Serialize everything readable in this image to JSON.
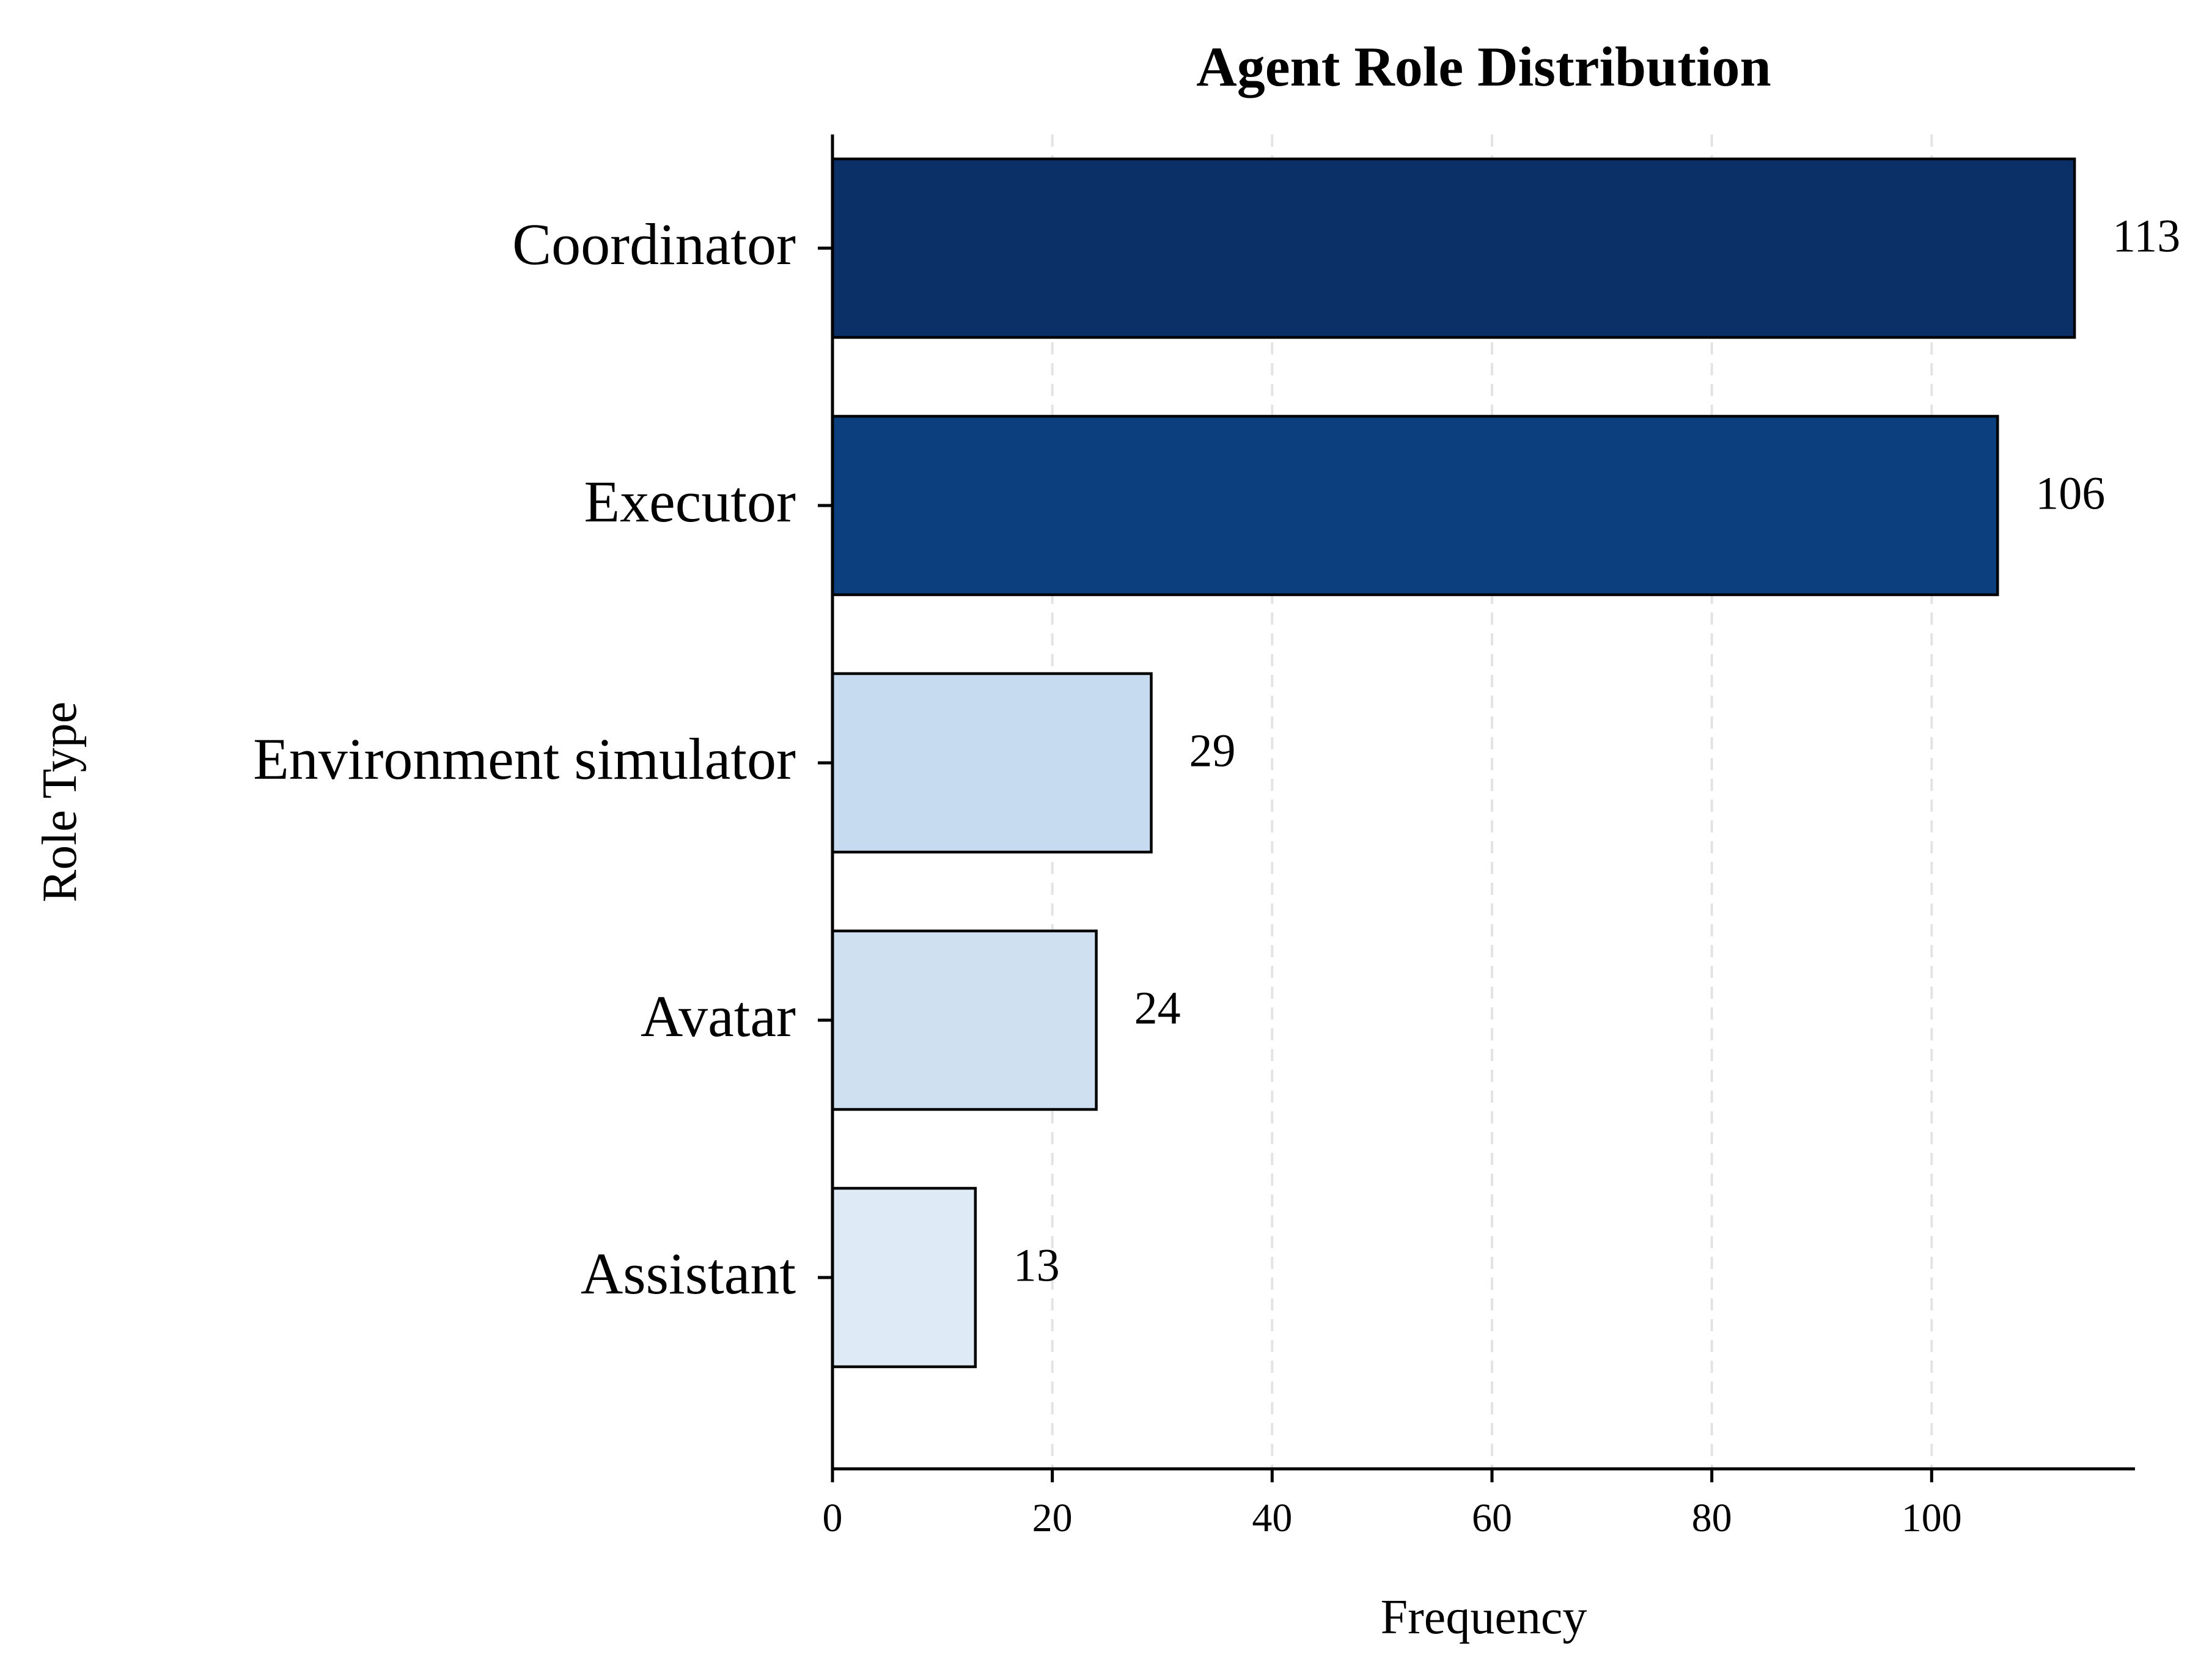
{
  "chart_data": {
    "type": "bar",
    "orientation": "horizontal",
    "title": "Agent Role Distribution",
    "xlabel": "Frequency",
    "ylabel": "Role Type",
    "categories": [
      "Coordinator",
      "Executor",
      "Environment simulator",
      "Avatar",
      "Assistant"
    ],
    "values": [
      113,
      106,
      29,
      24,
      13
    ],
    "colors": [
      "#0b3068",
      "#0c3f7d",
      "#c6dbef",
      "#cfe0f0",
      "#deebf7"
    ],
    "xlim": [
      0,
      118.5
    ],
    "xticks": [
      0,
      20,
      40,
      60,
      80,
      100
    ],
    "grid": "x-axis, dashed",
    "legend": "none",
    "data_labels": true
  }
}
